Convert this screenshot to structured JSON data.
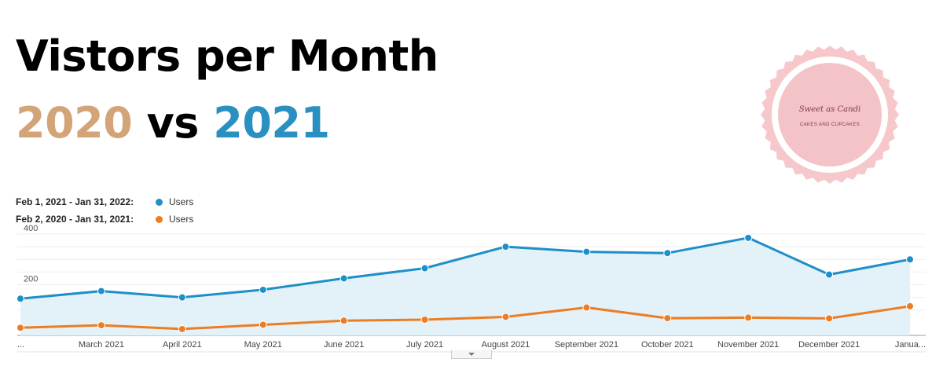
{
  "header": {
    "title": "Vistors per Month",
    "year_a": "2020",
    "vs": "vs",
    "year_b": "2021"
  },
  "logo": {
    "script_text": "Sweet as Candi",
    "caption": "CAKES AND CUPCAKES",
    "ring_color": "#f6c8cc",
    "inner_color": "#f4c3c7"
  },
  "colors": {
    "year_a": "#d2a478",
    "year_b": "#2a8fc1",
    "series_2021": "#1f8fc8",
    "series_2020": "#ec7d22",
    "area_fill": "#e3f1f9"
  },
  "legend": [
    {
      "range": "Feb 1, 2021 - Jan 31, 2022:",
      "label": "Users",
      "color": "#1f8fc8"
    },
    {
      "range": "Feb 2, 2020 - Jan 31, 2021:",
      "label": "Users",
      "color": "#ec7d22"
    }
  ],
  "chart_data": {
    "type": "line",
    "categories": [
      "...",
      "March 2021",
      "April 2021",
      "May 2021",
      "June 2021",
      "July 2021",
      "August 2021",
      "September 2021",
      "October 2021",
      "November 2021",
      "December 2021",
      "Janua..."
    ],
    "series": [
      {
        "name": "Users",
        "period": "Feb 1, 2021 - Jan 31, 2022",
        "values": [
          145,
          175,
          150,
          180,
          225,
          265,
          350,
          330,
          325,
          385,
          240,
          300
        ],
        "area": true
      },
      {
        "name": "Users",
        "period": "Feb 2, 2020 - Jan 31, 2021",
        "values": [
          30,
          40,
          25,
          42,
          58,
          62,
          73,
          110,
          68,
          70,
          67,
          115
        ],
        "area": false
      }
    ],
    "y_ticks": [
      {
        "value": 200,
        "label": "200"
      },
      {
        "value": 400,
        "label": "400"
      }
    ],
    "ylim": [
      0,
      400
    ],
    "grid": true,
    "legend_position": "top-left"
  }
}
